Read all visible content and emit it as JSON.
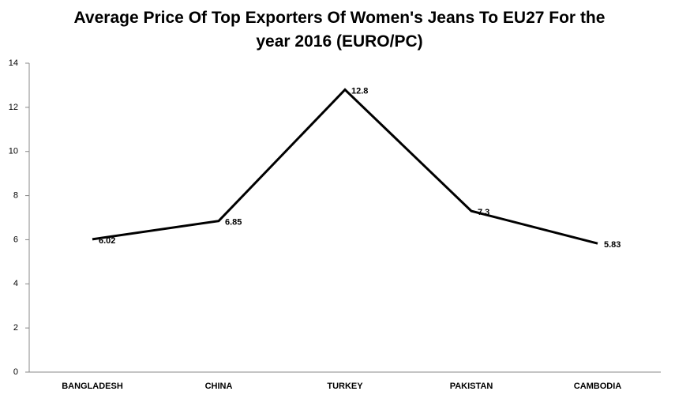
{
  "chart_data": {
    "type": "line",
    "title": "Average Price Of Top Exporters Of Women's Jeans To EU27 For the year 2016 (EURO/PC)",
    "categories": [
      "BANGLADESH",
      "CHINA",
      "TURKEY",
      "PAKISTAN",
      "CAMBODIA"
    ],
    "values": [
      6.02,
      6.85,
      12.8,
      7.3,
      5.83
    ],
    "color": "#000000",
    "ylim": [
      0,
      14
    ],
    "yticks": [
      0,
      2,
      4,
      6,
      8,
      10,
      12,
      14
    ],
    "grid": false
  }
}
